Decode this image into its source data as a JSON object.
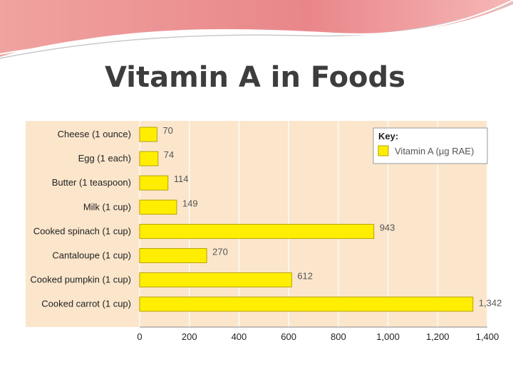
{
  "slide": {
    "title": "Vitamin A in Foods"
  },
  "colors": {
    "plot_bg": "#fbe6cc",
    "bar_fill": "#ffee00",
    "bar_stroke": "#b7a300",
    "accent": "#e8767a"
  },
  "chart_data": {
    "type": "bar",
    "orientation": "horizontal",
    "title": "",
    "xlabel": "",
    "ylabel": "",
    "xlim": [
      0,
      1400
    ],
    "x_ticks": [
      0,
      200,
      400,
      600,
      800,
      1000,
      1200,
      1400
    ],
    "x_tick_labels": [
      "0",
      "200",
      "400",
      "600",
      "800",
      "1,000",
      "1,200",
      "1,400"
    ],
    "grid": true,
    "legend_position": "top-right",
    "legend_title": "Key:",
    "categories": [
      "Cheese (1 ounce)",
      "Egg (1 each)",
      "Butter (1 teaspoon)",
      "Milk (1 cup)",
      "Cooked spinach (1 cup)",
      "Cantaloupe (1 cup)",
      "Cooked pumpkin (1 cup)",
      "Cooked carrot (1 cup)"
    ],
    "series": [
      {
        "name": "Vitamin A (µg RAE)",
        "values": [
          70,
          74,
          114,
          149,
          943,
          270,
          612,
          1342
        ],
        "labels": [
          "70",
          "74",
          "114",
          "149",
          "943",
          "270",
          "612",
          "1,342"
        ]
      }
    ]
  }
}
